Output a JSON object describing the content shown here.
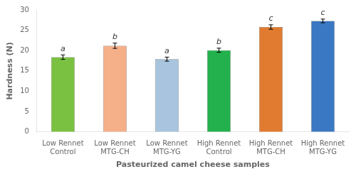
{
  "chart_data": {
    "type": "bar",
    "categories": [
      "Low Rennet\nControl",
      "Low Rennet\nMTG-CH",
      "Low Rennet\nMTG-YG",
      "High Rennet\nControl",
      "High Rennet\nMTG-CH",
      "High Rennet\nMTG-YG"
    ],
    "values": [
      18.4,
      21.2,
      17.9,
      20.1,
      25.8,
      27.3
    ],
    "errors": [
      0.55,
      0.65,
      0.5,
      0.5,
      0.55,
      0.45
    ],
    "colors": [
      "#7ac142",
      "#f5b08a",
      "#a8c4de",
      "#23b14d",
      "#e07b30",
      "#3b78c3"
    ],
    "annotations": [
      "a",
      "b",
      "a",
      "b",
      "c",
      "c"
    ],
    "xlabel": "Pasteurized camel cheese samples",
    "ylabel": "Hardness (N)",
    "ylim": [
      0,
      30
    ],
    "yticks": [
      0,
      5,
      10,
      15,
      20,
      25,
      30
    ],
    "grid": false,
    "legend": false
  }
}
